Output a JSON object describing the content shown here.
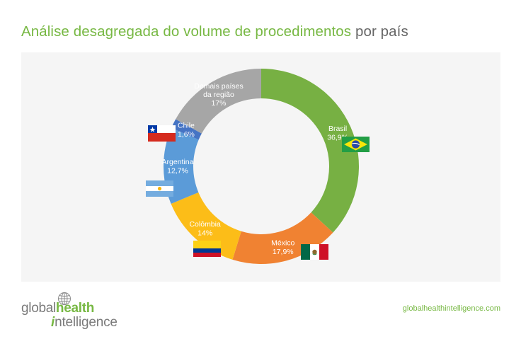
{
  "title": {
    "highlight": "Análise desagregada do volume de procedimentos",
    "rest": "por país"
  },
  "chart_data": {
    "type": "pie",
    "title": "Análise desagregada do volume de procedimentos por país",
    "slices": [
      {
        "label": "Brasil",
        "value": 36.9,
        "display": "36,9%",
        "color": "#77b043"
      },
      {
        "label": "México",
        "value": 17.9,
        "display": "17,9%",
        "color": "#f08232"
      },
      {
        "label": "Colômbia",
        "value": 14,
        "display": "14%",
        "color": "#fcbd18"
      },
      {
        "label": "Argentina",
        "value": 12.7,
        "display": "12,7%",
        "color": "#5b9bd8"
      },
      {
        "label": "Chile",
        "value": 1.6,
        "display": "1,6%",
        "color": "#4674c4"
      },
      {
        "label": "Demais países da região",
        "value": 17,
        "display": "17%",
        "color": "#a6a6a6"
      }
    ],
    "legend": "none",
    "style": "donut"
  },
  "logo": {
    "line1a": "global",
    "line1b": "health",
    "line2a": "i",
    "line2b": "ntelligence",
    "icon": "globe-icon"
  },
  "footer": {
    "url": "globalhealthintelligence.com"
  },
  "flags": {
    "brasil": "brazil-flag-icon",
    "mexico": "mexico-flag-icon",
    "colombia": "colombia-flag-icon",
    "argentina": "argentina-flag-icon",
    "chile": "chile-flag-icon"
  }
}
